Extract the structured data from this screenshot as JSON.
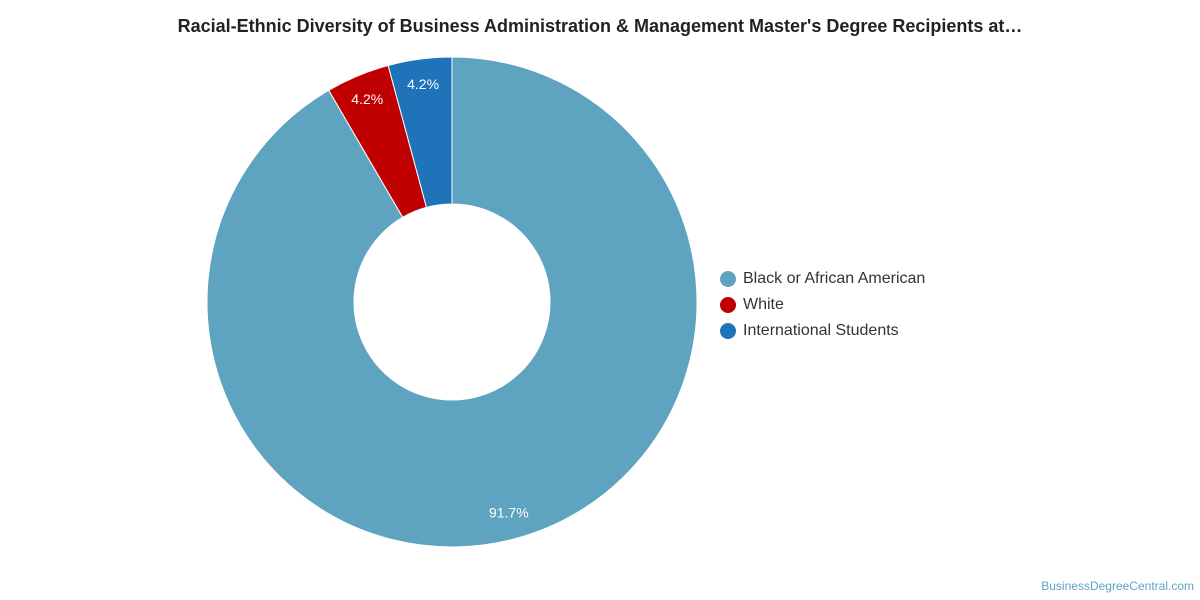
{
  "chart_data": {
    "type": "pie",
    "title": "Racial-Ethnic Diversity of Business Administration & Management Master's Degree Recipients at…",
    "slices": [
      {
        "name": "Black or African American",
        "value": 91.7,
        "label": "91.7%",
        "color": "#5ea3c0"
      },
      {
        "name": "White",
        "value": 4.2,
        "label": "4.2%",
        "color": "#c00000"
      },
      {
        "name": "International Students",
        "value": 4.2,
        "label": "4.2%",
        "color": "#1f73b8"
      }
    ],
    "legend_position": "right"
  },
  "credit": "BusinessDegreeCentral.com"
}
